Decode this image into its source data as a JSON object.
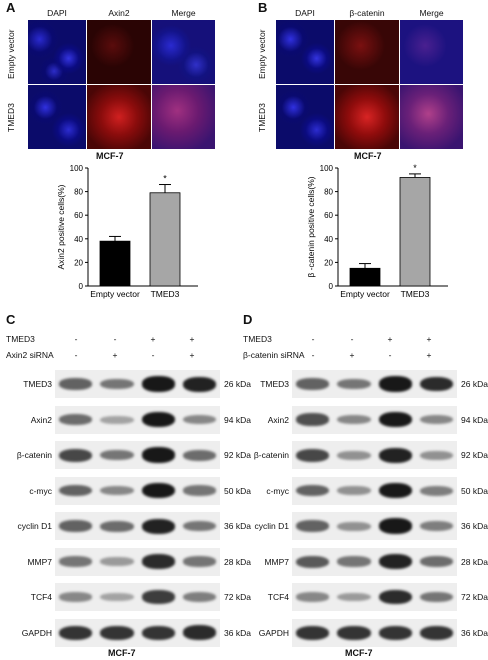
{
  "panels": {
    "A": {
      "letter": "A",
      "columns": [
        "DAPI",
        "Axin2",
        "Merge"
      ],
      "rows": [
        "Empty vector",
        "TMED3"
      ],
      "cell_line": "MCF-7"
    },
    "B": {
      "letter": "B",
      "columns": [
        "DAPI",
        "β-catenin",
        "Merge"
      ],
      "rows": [
        "Empty vector",
        "TMED3"
      ],
      "cell_line": "MCF-7"
    },
    "C": {
      "letter": "C",
      "conditions": [
        {
          "name": "TMED3",
          "marks": [
            "-",
            "-",
            "+",
            "+"
          ]
        },
        {
          "name": "Axin2 siRNA",
          "marks": [
            "-",
            "+",
            "-",
            "+"
          ]
        }
      ],
      "bands": [
        {
          "protein": "TMED3",
          "kda": "26 kDa",
          "intensity": [
            0.55,
            0.45,
            0.95,
            0.9
          ]
        },
        {
          "protein": "Axin2",
          "kda": "94 kDa",
          "intensity": [
            0.5,
            0.2,
            0.95,
            0.35
          ]
        },
        {
          "protein": "β-catenin",
          "kda": "92 kDa",
          "intensity": [
            0.7,
            0.45,
            0.95,
            0.5
          ]
        },
        {
          "protein": "c-myc",
          "kda": "50 kDa",
          "intensity": [
            0.55,
            0.35,
            0.95,
            0.45
          ]
        },
        {
          "protein": "cyclin D1",
          "kda": "36 kDa",
          "intensity": [
            0.55,
            0.5,
            0.9,
            0.45
          ]
        },
        {
          "protein": "MMP7",
          "kda": "28 kDa",
          "intensity": [
            0.45,
            0.25,
            0.85,
            0.45
          ]
        },
        {
          "protein": "TCF4",
          "kda": "72 kDa",
          "intensity": [
            0.35,
            0.2,
            0.75,
            0.4
          ]
        },
        {
          "protein": "GAPDH",
          "kda": "36 kDa",
          "intensity": [
            0.8,
            0.8,
            0.8,
            0.85
          ]
        }
      ],
      "cell_line": "MCF-7"
    },
    "D": {
      "letter": "D",
      "conditions": [
        {
          "name": "TMED3",
          "marks": [
            "-",
            "-",
            "+",
            "+"
          ]
        },
        {
          "name": "β-catenin siRNA",
          "marks": [
            "-",
            "+",
            "-",
            "+"
          ]
        }
      ],
      "bands": [
        {
          "protein": "TMED3",
          "kda": "26 kDa",
          "intensity": [
            0.55,
            0.45,
            0.95,
            0.85
          ]
        },
        {
          "protein": "Axin2",
          "kda": "94 kDa",
          "intensity": [
            0.65,
            0.35,
            0.95,
            0.35
          ]
        },
        {
          "protein": "β-catenin",
          "kda": "92 kDa",
          "intensity": [
            0.7,
            0.3,
            0.9,
            0.3
          ]
        },
        {
          "protein": "c-myc",
          "kda": "50 kDa",
          "intensity": [
            0.55,
            0.3,
            0.95,
            0.4
          ]
        },
        {
          "protein": "cyclin D1",
          "kda": "36 kDa",
          "intensity": [
            0.55,
            0.3,
            0.95,
            0.4
          ]
        },
        {
          "protein": "MMP7",
          "kda": "28 kDa",
          "intensity": [
            0.6,
            0.45,
            0.9,
            0.5
          ]
        },
        {
          "protein": "TCF4",
          "kda": "72 kDa",
          "intensity": [
            0.35,
            0.25,
            0.85,
            0.45
          ]
        },
        {
          "protein": "GAPDH",
          "kda": "36 kDa",
          "intensity": [
            0.8,
            0.8,
            0.8,
            0.8
          ]
        }
      ],
      "cell_line": "MCF-7"
    }
  },
  "chart_data": [
    {
      "type": "bar",
      "categories": [
        "Empty vector",
        "TMED3"
      ],
      "values": [
        38,
        79
      ],
      "errors": [
        4,
        7
      ],
      "ylabel": "Axin2 positive cells(%)",
      "ylim": [
        0,
        100
      ],
      "yticks": [
        "0",
        "20",
        "40",
        "60",
        "80",
        "100"
      ],
      "annotation": "*",
      "bar_colors": [
        "#000000",
        "#a6a6a6"
      ]
    },
    {
      "type": "bar",
      "categories": [
        "Empty vector",
        "TMED3"
      ],
      "values": [
        15,
        92
      ],
      "errors": [
        4,
        3
      ],
      "ylabel": "β -catenin positive cells(%)",
      "ylim": [
        0,
        100
      ],
      "yticks": [
        "0",
        "20",
        "40",
        "60",
        "80",
        "100"
      ],
      "annotation": "*",
      "bar_colors": [
        "#000000",
        "#a6a6a6"
      ]
    }
  ]
}
